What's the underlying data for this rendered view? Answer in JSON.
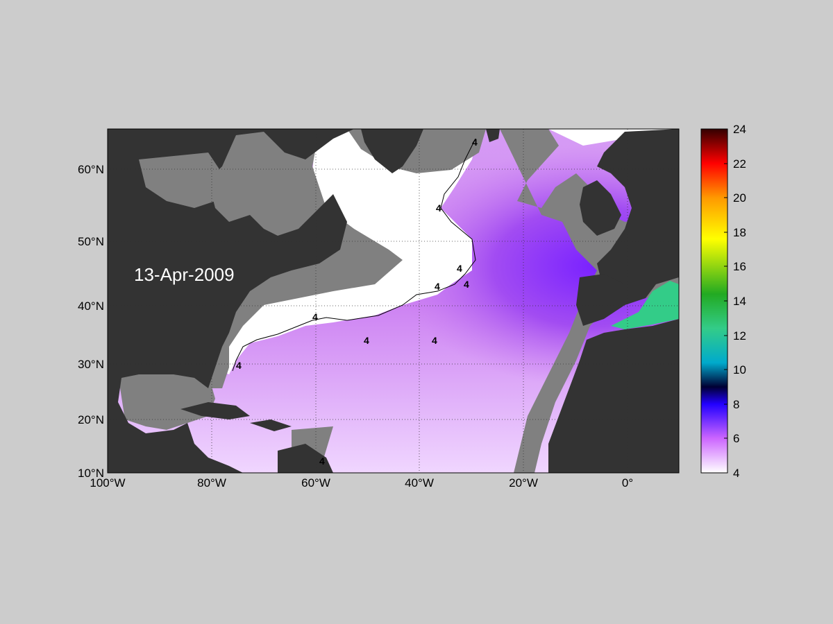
{
  "map": {
    "date_label": "13-Apr-2009",
    "lon_ticks": [
      "100°W",
      "80°W",
      "60°W",
      "40°W",
      "20°W",
      "0°"
    ],
    "lat_ticks": [
      "60°N",
      "50°N",
      "40°N",
      "30°N",
      "20°N",
      "10°N"
    ],
    "contour_label": "4",
    "colors": {
      "figure_bg": "#cccccc",
      "land": "#333333",
      "shelf": "#808080",
      "cold_white": "#ffffff",
      "low_violet": "#f2dcff",
      "mid_violet": "#cc66ff",
      "high_violet": "#8a1fff",
      "mediterranean": "#33cc88"
    }
  },
  "colorbar": {
    "ticks": [
      "24",
      "22",
      "20",
      "18",
      "16",
      "14",
      "12",
      "10",
      "8",
      "6",
      "4"
    ],
    "range": [
      4,
      24
    ]
  }
}
